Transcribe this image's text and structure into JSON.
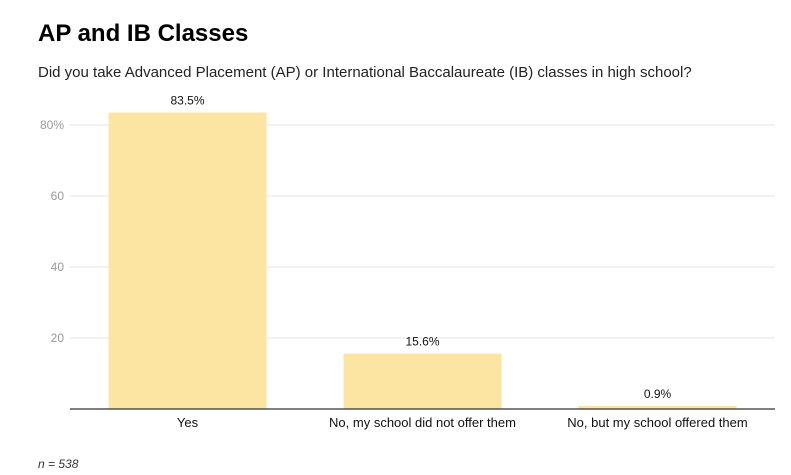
{
  "header": {
    "title": "AP and IB Classes",
    "subtitle": "Did you take Advanced Placement (AP) or International Baccalaureate (IB) classes in high school?"
  },
  "footnote": "n = 538",
  "colors": {
    "bar": "#fce5a3",
    "grid": "#e6e6e6",
    "axis": "#333333"
  },
  "chart_data": {
    "type": "bar",
    "categories": [
      "Yes",
      "No, my school did not offer them",
      "No, but my school offered them"
    ],
    "values": [
      83.5,
      15.6,
      0.9
    ],
    "data_labels": [
      "83.5%",
      "15.6%",
      "0.9%"
    ],
    "y_ticks": [
      20,
      40,
      60,
      80
    ],
    "y_tick_labels": [
      "20",
      "40",
      "60",
      "80%"
    ],
    "ylim": [
      0,
      100
    ],
    "grid": true,
    "legend": "none"
  }
}
